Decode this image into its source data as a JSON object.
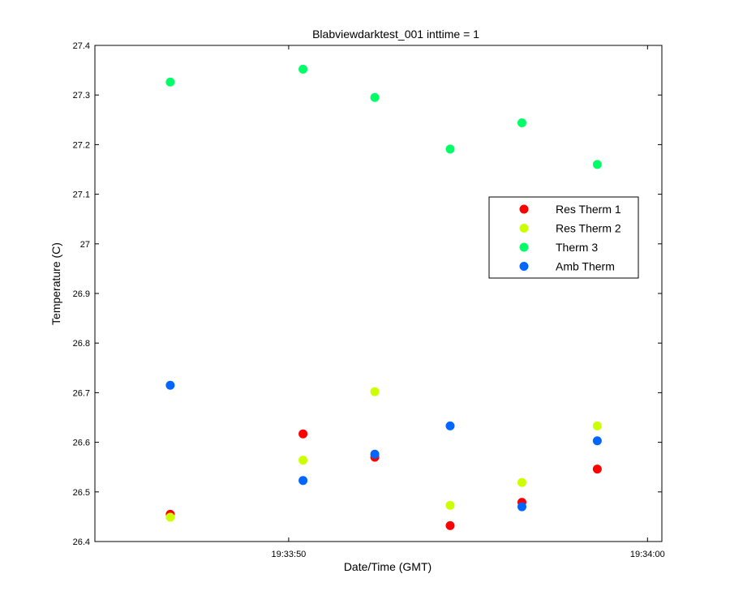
{
  "chart_data": {
    "type": "scatter",
    "title": "Blabviewdarktest_001 inttime = 1",
    "xlabel": "Date/Time (GMT)",
    "ylabel": "Temperature (C)",
    "ylim": [
      26.4,
      27.4
    ],
    "xlim": [
      "19:33:44.6",
      "19:34:00.4"
    ],
    "y_ticks": [
      26.4,
      26.5,
      26.6,
      26.7,
      26.8,
      26.9,
      27.0,
      27.1,
      27.2,
      27.3,
      27.4
    ],
    "y_tick_labels": [
      "26.4",
      "26.5",
      "26.6",
      "26.7",
      "26.8",
      "26.9",
      "27",
      "27.1",
      "27.2",
      "27.3",
      "27.4"
    ],
    "x_ticks": [
      "19:33:50",
      "19:34:00"
    ],
    "x_tick_labels": [
      "19:33:50",
      "19:34:00"
    ],
    "x": [
      "19:33:46.7",
      "19:33:50.4",
      "19:33:52.4",
      "19:33:54.5",
      "19:33:56.5",
      "19:33:58.6"
    ],
    "legend_position": "right",
    "grid": false,
    "series": [
      {
        "name": "Res Therm 1",
        "color": "#ff0000",
        "values": [
          26.455,
          26.617,
          26.57,
          26.432,
          26.479,
          26.546
        ]
      },
      {
        "name": "Res Therm 2",
        "color": "#ccff00",
        "values": [
          26.449,
          26.564,
          26.702,
          26.473,
          26.519,
          26.633
        ]
      },
      {
        "name": "Therm 3",
        "color": "#00ff66",
        "values": [
          27.326,
          27.352,
          27.295,
          27.191,
          27.244,
          27.16
        ]
      },
      {
        "name": "Amb Therm",
        "color": "#0066ff",
        "values": [
          26.715,
          26.523,
          26.576,
          26.633,
          26.47,
          26.603
        ]
      }
    ]
  }
}
